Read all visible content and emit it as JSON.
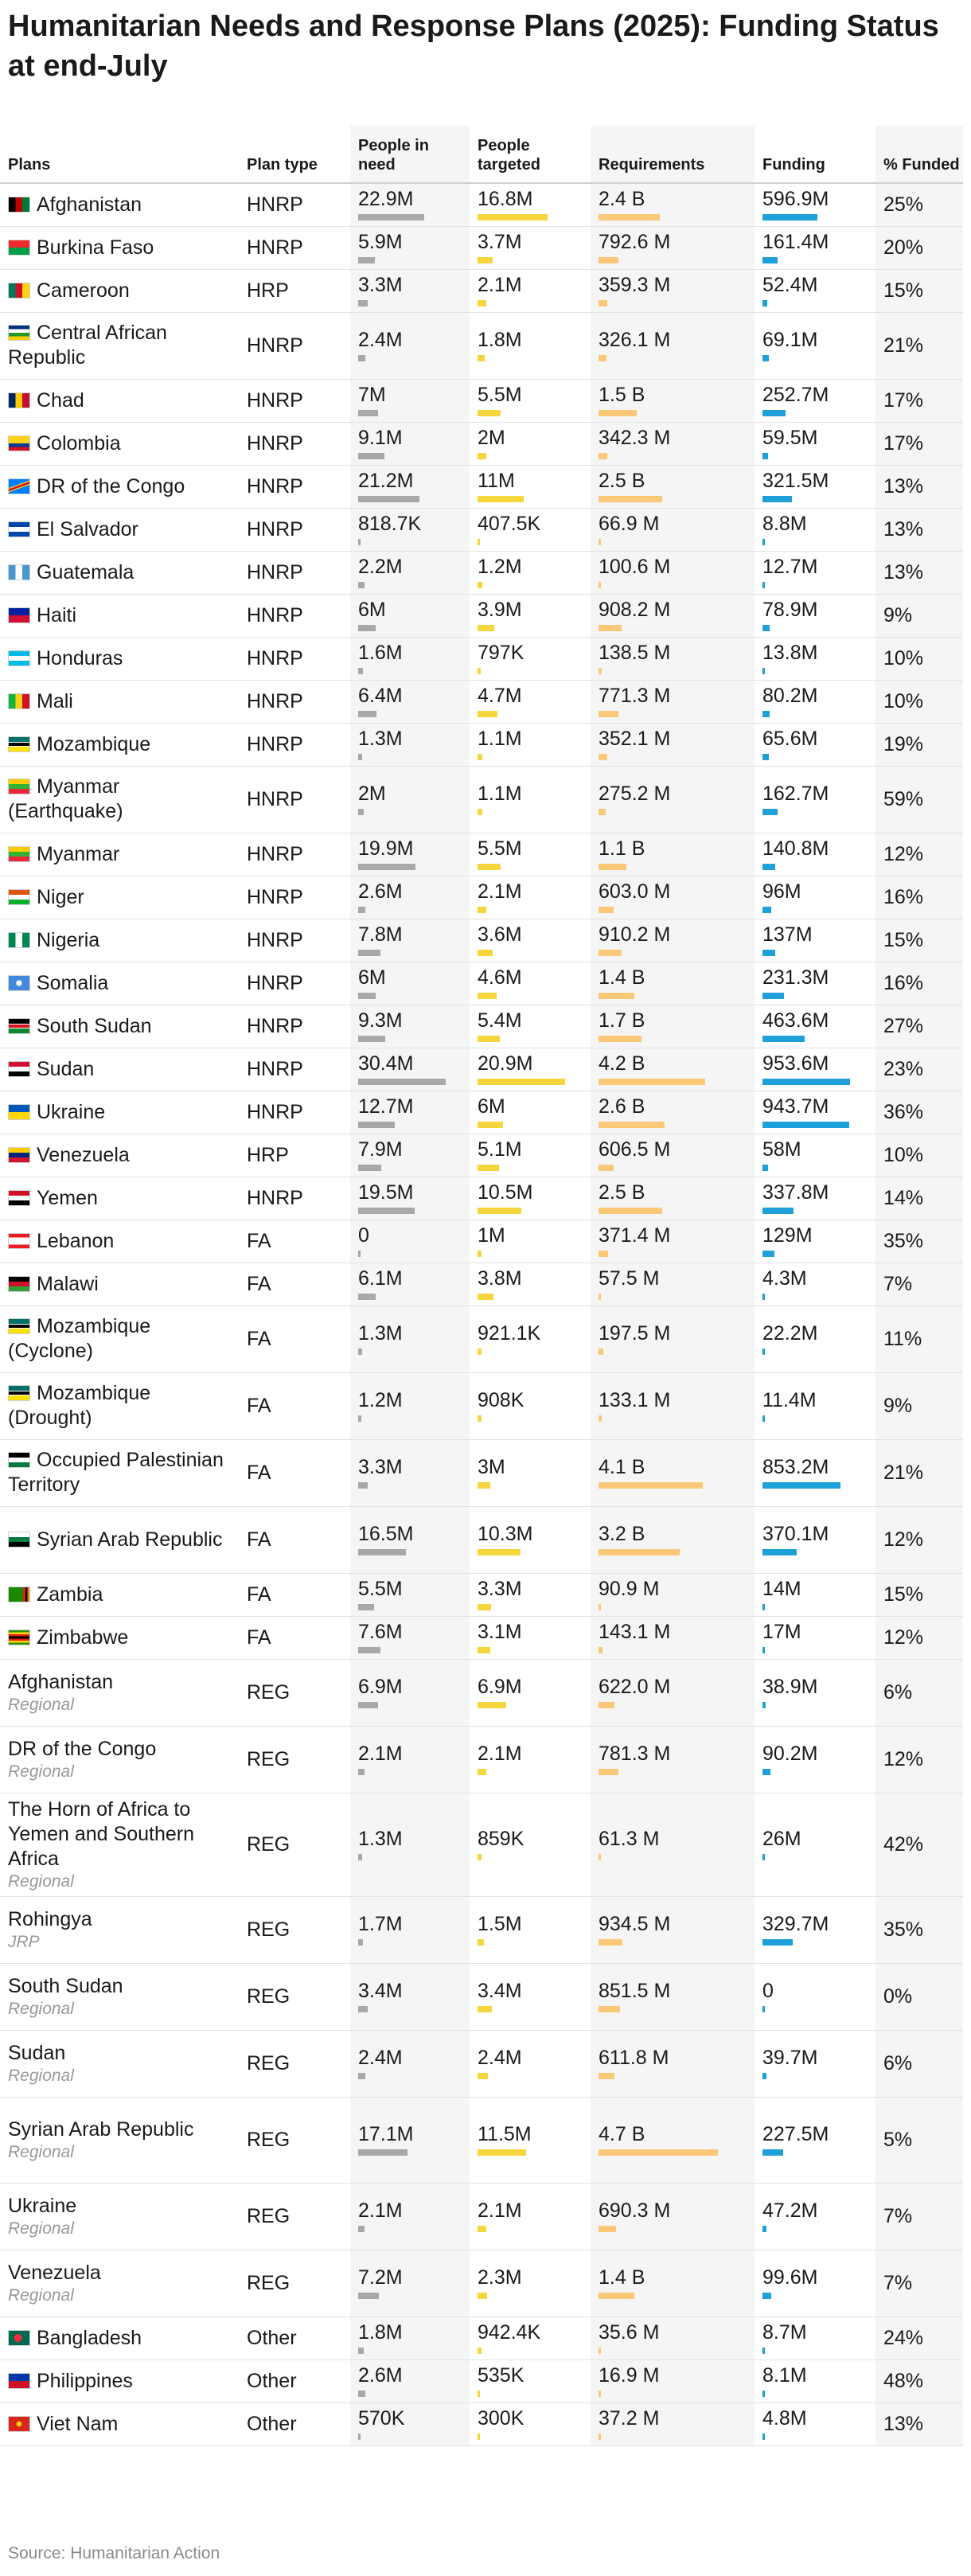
{
  "title": "Humanitarian Needs and Response Plans (2025): Funding Status at end-July",
  "source": "Source: Humanitarian Action",
  "colors": {
    "need_bar": "#a8a8a8",
    "target_bar": "#f5d63d",
    "req_bar": "#fbc878",
    "fund_bar": "#1ea0d8"
  },
  "chart_data": {
    "type": "table",
    "columns": [
      "Plans",
      "Plan type",
      "People in need",
      "People targeted",
      "Requirements",
      "Funding",
      "% Funded"
    ],
    "rows": [
      {
        "plan": "Afghanistan",
        "sub": "",
        "flag": "afghanistan-flag-icon",
        "type": "HNRP",
        "need": "22.9M",
        "need_v": 22.9,
        "target": "16.8M",
        "target_v": 16.8,
        "req": "2.4 B",
        "req_v": 2400,
        "fund": "596.9M",
        "fund_v": 596.9,
        "pct": "25%"
      },
      {
        "plan": "Burkina Faso",
        "sub": "",
        "flag": "burkina-faso-flag-icon",
        "type": "HNRP",
        "need": "5.9M",
        "need_v": 5.9,
        "target": "3.7M",
        "target_v": 3.7,
        "req": "792.6 M",
        "req_v": 792.6,
        "fund": "161.4M",
        "fund_v": 161.4,
        "pct": "20%"
      },
      {
        "plan": "Cameroon",
        "sub": "",
        "flag": "cameroon-flag-icon",
        "type": "HRP",
        "need": "3.3M",
        "need_v": 3.3,
        "target": "2.1M",
        "target_v": 2.1,
        "req": "359.3 M",
        "req_v": 359.3,
        "fund": "52.4M",
        "fund_v": 52.4,
        "pct": "15%"
      },
      {
        "plan": "Central African Republic",
        "sub": "",
        "flag": "car-flag-icon",
        "type": "HNRP",
        "need": "2.4M",
        "need_v": 2.4,
        "target": "1.8M",
        "target_v": 1.8,
        "req": "326.1 M",
        "req_v": 326.1,
        "fund": "69.1M",
        "fund_v": 69.1,
        "pct": "21%"
      },
      {
        "plan": "Chad",
        "sub": "",
        "flag": "chad-flag-icon",
        "type": "HNRP",
        "need": "7M",
        "need_v": 7,
        "target": "5.5M",
        "target_v": 5.5,
        "req": "1.5 B",
        "req_v": 1500,
        "fund": "252.7M",
        "fund_v": 252.7,
        "pct": "17%"
      },
      {
        "plan": "Colombia",
        "sub": "",
        "flag": "colombia-flag-icon",
        "type": "HNRP",
        "need": "9.1M",
        "need_v": 9.1,
        "target": "2M",
        "target_v": 2,
        "req": "342.3 M",
        "req_v": 342.3,
        "fund": "59.5M",
        "fund_v": 59.5,
        "pct": "17%"
      },
      {
        "plan": "DR of the Congo",
        "sub": "",
        "flag": "drc-flag-icon",
        "type": "HNRP",
        "need": "21.2M",
        "need_v": 21.2,
        "target": "11M",
        "target_v": 11,
        "req": "2.5 B",
        "req_v": 2500,
        "fund": "321.5M",
        "fund_v": 321.5,
        "pct": "13%"
      },
      {
        "plan": "El Salvador",
        "sub": "",
        "flag": "el-salvador-flag-icon",
        "type": "HNRP",
        "need": "818.7K",
        "need_v": 0.8187,
        "target": "407.5K",
        "target_v": 0.4075,
        "req": "66.9 M",
        "req_v": 66.9,
        "fund": "8.8M",
        "fund_v": 8.8,
        "pct": "13%"
      },
      {
        "plan": "Guatemala",
        "sub": "",
        "flag": "guatemala-flag-icon",
        "type": "HNRP",
        "need": "2.2M",
        "need_v": 2.2,
        "target": "1.2M",
        "target_v": 1.2,
        "req": "100.6 M",
        "req_v": 100.6,
        "fund": "12.7M",
        "fund_v": 12.7,
        "pct": "13%"
      },
      {
        "plan": "Haiti",
        "sub": "",
        "flag": "haiti-flag-icon",
        "type": "HNRP",
        "need": "6M",
        "need_v": 6,
        "target": "3.9M",
        "target_v": 3.9,
        "req": "908.2 M",
        "req_v": 908.2,
        "fund": "78.9M",
        "fund_v": 78.9,
        "pct": "9%"
      },
      {
        "plan": "Honduras",
        "sub": "",
        "flag": "honduras-flag-icon",
        "type": "HNRP",
        "need": "1.6M",
        "need_v": 1.6,
        "target": "797K",
        "target_v": 0.797,
        "req": "138.5 M",
        "req_v": 138.5,
        "fund": "13.8M",
        "fund_v": 13.8,
        "pct": "10%"
      },
      {
        "plan": "Mali",
        "sub": "",
        "flag": "mali-flag-icon",
        "type": "HNRP",
        "need": "6.4M",
        "need_v": 6.4,
        "target": "4.7M",
        "target_v": 4.7,
        "req": "771.3 M",
        "req_v": 771.3,
        "fund": "80.2M",
        "fund_v": 80.2,
        "pct": "10%"
      },
      {
        "plan": "Mozambique",
        "sub": "",
        "flag": "mozambique-flag-icon",
        "type": "HNRP",
        "need": "1.3M",
        "need_v": 1.3,
        "target": "1.1M",
        "target_v": 1.1,
        "req": "352.1 M",
        "req_v": 352.1,
        "fund": "65.6M",
        "fund_v": 65.6,
        "pct": "19%"
      },
      {
        "plan": "Myanmar (Earthquake)",
        "sub": "",
        "flag": "myanmar-flag-icon",
        "type": "HNRP",
        "need": "2M",
        "need_v": 2,
        "target": "1.1M",
        "target_v": 1.1,
        "req": "275.2 M",
        "req_v": 275.2,
        "fund": "162.7M",
        "fund_v": 162.7,
        "pct": "59%"
      },
      {
        "plan": "Myanmar",
        "sub": "",
        "flag": "myanmar-flag-icon",
        "type": "HNRP",
        "need": "19.9M",
        "need_v": 19.9,
        "target": "5.5M",
        "target_v": 5.5,
        "req": "1.1 B",
        "req_v": 1100,
        "fund": "140.8M",
        "fund_v": 140.8,
        "pct": "12%"
      },
      {
        "plan": "Niger",
        "sub": "",
        "flag": "niger-flag-icon",
        "type": "HNRP",
        "need": "2.6M",
        "need_v": 2.6,
        "target": "2.1M",
        "target_v": 2.1,
        "req": "603.0 M",
        "req_v": 603.0,
        "fund": "96M",
        "fund_v": 96,
        "pct": "16%"
      },
      {
        "plan": "Nigeria",
        "sub": "",
        "flag": "nigeria-flag-icon",
        "type": "HNRP",
        "need": "7.8M",
        "need_v": 7.8,
        "target": "3.6M",
        "target_v": 3.6,
        "req": "910.2 M",
        "req_v": 910.2,
        "fund": "137M",
        "fund_v": 137,
        "pct": "15%"
      },
      {
        "plan": "Somalia",
        "sub": "",
        "flag": "somalia-flag-icon",
        "type": "HNRP",
        "need": "6M",
        "need_v": 6,
        "target": "4.6M",
        "target_v": 4.6,
        "req": "1.4 B",
        "req_v": 1400,
        "fund": "231.3M",
        "fund_v": 231.3,
        "pct": "16%"
      },
      {
        "plan": "South Sudan",
        "sub": "",
        "flag": "south-sudan-flag-icon",
        "type": "HNRP",
        "need": "9.3M",
        "need_v": 9.3,
        "target": "5.4M",
        "target_v": 5.4,
        "req": "1.7 B",
        "req_v": 1700,
        "fund": "463.6M",
        "fund_v": 463.6,
        "pct": "27%"
      },
      {
        "plan": "Sudan",
        "sub": "",
        "flag": "sudan-flag-icon",
        "type": "HNRP",
        "need": "30.4M",
        "need_v": 30.4,
        "target": "20.9M",
        "target_v": 20.9,
        "req": "4.2 B",
        "req_v": 4200,
        "fund": "953.6M",
        "fund_v": 953.6,
        "pct": "23%"
      },
      {
        "plan": "Ukraine",
        "sub": "",
        "flag": "ukraine-flag-icon",
        "type": "HNRP",
        "need": "12.7M",
        "need_v": 12.7,
        "target": "6M",
        "target_v": 6,
        "req": "2.6 B",
        "req_v": 2600,
        "fund": "943.7M",
        "fund_v": 943.7,
        "pct": "36%"
      },
      {
        "plan": "Venezuela",
        "sub": "",
        "flag": "venezuela-flag-icon",
        "type": "HRP",
        "need": "7.9M",
        "need_v": 7.9,
        "target": "5.1M",
        "target_v": 5.1,
        "req": "606.5 M",
        "req_v": 606.5,
        "fund": "58M",
        "fund_v": 58,
        "pct": "10%"
      },
      {
        "plan": "Yemen",
        "sub": "",
        "flag": "yemen-flag-icon",
        "type": "HNRP",
        "need": "19.5M",
        "need_v": 19.5,
        "target": "10.5M",
        "target_v": 10.5,
        "req": "2.5 B",
        "req_v": 2500,
        "fund": "337.8M",
        "fund_v": 337.8,
        "pct": "14%"
      },
      {
        "plan": "Lebanon",
        "sub": "",
        "flag": "lebanon-flag-icon",
        "type": "FA",
        "need": "0",
        "need_v": 0,
        "target": "1M",
        "target_v": 1,
        "req": "371.4 M",
        "req_v": 371.4,
        "fund": "129M",
        "fund_v": 129,
        "pct": "35%"
      },
      {
        "plan": "Malawi",
        "sub": "",
        "flag": "malawi-flag-icon",
        "type": "FA",
        "need": "6.1M",
        "need_v": 6.1,
        "target": "3.8M",
        "target_v": 3.8,
        "req": "57.5 M",
        "req_v": 57.5,
        "fund": "4.3M",
        "fund_v": 4.3,
        "pct": "7%"
      },
      {
        "plan": "Mozambique (Cyclone)",
        "sub": "",
        "flag": "mozambique-flag-icon",
        "type": "FA",
        "need": "1.3M",
        "need_v": 1.3,
        "target": "921.1K",
        "target_v": 0.9211,
        "req": "197.5 M",
        "req_v": 197.5,
        "fund": "22.2M",
        "fund_v": 22.2,
        "pct": "11%"
      },
      {
        "plan": "Mozambique (Drought)",
        "sub": "",
        "flag": "mozambique-flag-icon",
        "type": "FA",
        "need": "1.2M",
        "need_v": 1.2,
        "target": "908K",
        "target_v": 0.908,
        "req": "133.1 M",
        "req_v": 133.1,
        "fund": "11.4M",
        "fund_v": 11.4,
        "pct": "9%"
      },
      {
        "plan": "Occupied Palestinian Territory",
        "sub": "",
        "flag": "palestine-flag-icon",
        "type": "FA",
        "need": "3.3M",
        "need_v": 3.3,
        "target": "3M",
        "target_v": 3,
        "req": "4.1 B",
        "req_v": 4100,
        "fund": "853.2M",
        "fund_v": 853.2,
        "pct": "21%"
      },
      {
        "plan": "Syrian Arab Republic",
        "sub": "",
        "flag": "syria-flag-icon",
        "type": "FA",
        "need": "16.5M",
        "need_v": 16.5,
        "target": "10.3M",
        "target_v": 10.3,
        "req": "3.2 B",
        "req_v": 3200,
        "fund": "370.1M",
        "fund_v": 370.1,
        "pct": "12%"
      },
      {
        "plan": "Zambia",
        "sub": "",
        "flag": "zambia-flag-icon",
        "type": "FA",
        "need": "5.5M",
        "need_v": 5.5,
        "target": "3.3M",
        "target_v": 3.3,
        "req": "90.9 M",
        "req_v": 90.9,
        "fund": "14M",
        "fund_v": 14,
        "pct": "15%"
      },
      {
        "plan": "Zimbabwe",
        "sub": "",
        "flag": "zimbabwe-flag-icon",
        "type": "FA",
        "need": "7.6M",
        "need_v": 7.6,
        "target": "3.1M",
        "target_v": 3.1,
        "req": "143.1 M",
        "req_v": 143.1,
        "fund": "17M",
        "fund_v": 17,
        "pct": "12%"
      },
      {
        "plan": "Afghanistan",
        "sub": "Regional",
        "flag": "",
        "type": "REG",
        "need": "6.9M",
        "need_v": 6.9,
        "target": "6.9M",
        "target_v": 6.9,
        "req": "622.0 M",
        "req_v": 622.0,
        "fund": "38.9M",
        "fund_v": 38.9,
        "pct": "6%"
      },
      {
        "plan": "DR of the Congo",
        "sub": "Regional",
        "flag": "",
        "type": "REG",
        "need": "2.1M",
        "need_v": 2.1,
        "target": "2.1M",
        "target_v": 2.1,
        "req": "781.3 M",
        "req_v": 781.3,
        "fund": "90.2M",
        "fund_v": 90.2,
        "pct": "12%"
      },
      {
        "plan": "The Horn of Africa to Yemen and Southern Africa",
        "sub": "Regional",
        "flag": "",
        "type": "REG",
        "need": "1.3M",
        "need_v": 1.3,
        "target": "859K",
        "target_v": 0.859,
        "req": "61.3 M",
        "req_v": 61.3,
        "fund": "26M",
        "fund_v": 26,
        "pct": "42%"
      },
      {
        "plan": "Rohingya",
        "sub": "JRP",
        "flag": "",
        "type": "REG",
        "need": "1.7M",
        "need_v": 1.7,
        "target": "1.5M",
        "target_v": 1.5,
        "req": "934.5 M",
        "req_v": 934.5,
        "fund": "329.7M",
        "fund_v": 329.7,
        "pct": "35%"
      },
      {
        "plan": "South Sudan",
        "sub": "Regional",
        "flag": "",
        "type": "REG",
        "need": "3.4M",
        "need_v": 3.4,
        "target": "3.4M",
        "target_v": 3.4,
        "req": "851.5 M",
        "req_v": 851.5,
        "fund": "0",
        "fund_v": 0,
        "pct": "0%"
      },
      {
        "plan": "Sudan",
        "sub": "Regional",
        "flag": "",
        "type": "REG",
        "need": "2.4M",
        "need_v": 2.4,
        "target": "2.4M",
        "target_v": 2.4,
        "req": "611.8 M",
        "req_v": 611.8,
        "fund": "39.7M",
        "fund_v": 39.7,
        "pct": "6%"
      },
      {
        "plan": "Syrian Arab Republic",
        "sub": "Regional",
        "flag": "",
        "type": "REG",
        "need": "17.1M",
        "need_v": 17.1,
        "target": "11.5M",
        "target_v": 11.5,
        "req": "4.7 B",
        "req_v": 4700,
        "fund": "227.5M",
        "fund_v": 227.5,
        "pct": "5%"
      },
      {
        "plan": "Ukraine",
        "sub": "Regional",
        "flag": "",
        "type": "REG",
        "need": "2.1M",
        "need_v": 2.1,
        "target": "2.1M",
        "target_v": 2.1,
        "req": "690.3 M",
        "req_v": 690.3,
        "fund": "47.2M",
        "fund_v": 47.2,
        "pct": "7%"
      },
      {
        "plan": "Venezuela",
        "sub": "Regional",
        "flag": "",
        "type": "REG",
        "need": "7.2M",
        "need_v": 7.2,
        "target": "2.3M",
        "target_v": 2.3,
        "req": "1.4 B",
        "req_v": 1400,
        "fund": "99.6M",
        "fund_v": 99.6,
        "pct": "7%"
      },
      {
        "plan": "Bangladesh",
        "sub": "",
        "flag": "bangladesh-flag-icon",
        "type": "Other",
        "need": "1.8M",
        "need_v": 1.8,
        "target": "942.4K",
        "target_v": 0.9424,
        "req": "35.6 M",
        "req_v": 35.6,
        "fund": "8.7M",
        "fund_v": 8.7,
        "pct": "24%"
      },
      {
        "plan": "Philippines",
        "sub": "",
        "flag": "philippines-flag-icon",
        "type": "Other",
        "need": "2.6M",
        "need_v": 2.6,
        "target": "535K",
        "target_v": 0.535,
        "req": "16.9 M",
        "req_v": 16.9,
        "fund": "8.1M",
        "fund_v": 8.1,
        "pct": "48%"
      },
      {
        "plan": "Viet Nam",
        "sub": "",
        "flag": "vietnam-flag-icon",
        "type": "Other",
        "need": "570K",
        "need_v": 0.57,
        "target": "300K",
        "target_v": 0.3,
        "req": "37.2 M",
        "req_v": 37.2,
        "fund": "4.8M",
        "fund_v": 4.8,
        "pct": "13%"
      }
    ]
  },
  "headers": {
    "plans": "Plans",
    "plan_type": "Plan type",
    "people_in_need": "People in need",
    "people_targeted": "People targeted",
    "requirements": "Requirements",
    "funding": "Funding",
    "pct_funded": "% Funded"
  }
}
